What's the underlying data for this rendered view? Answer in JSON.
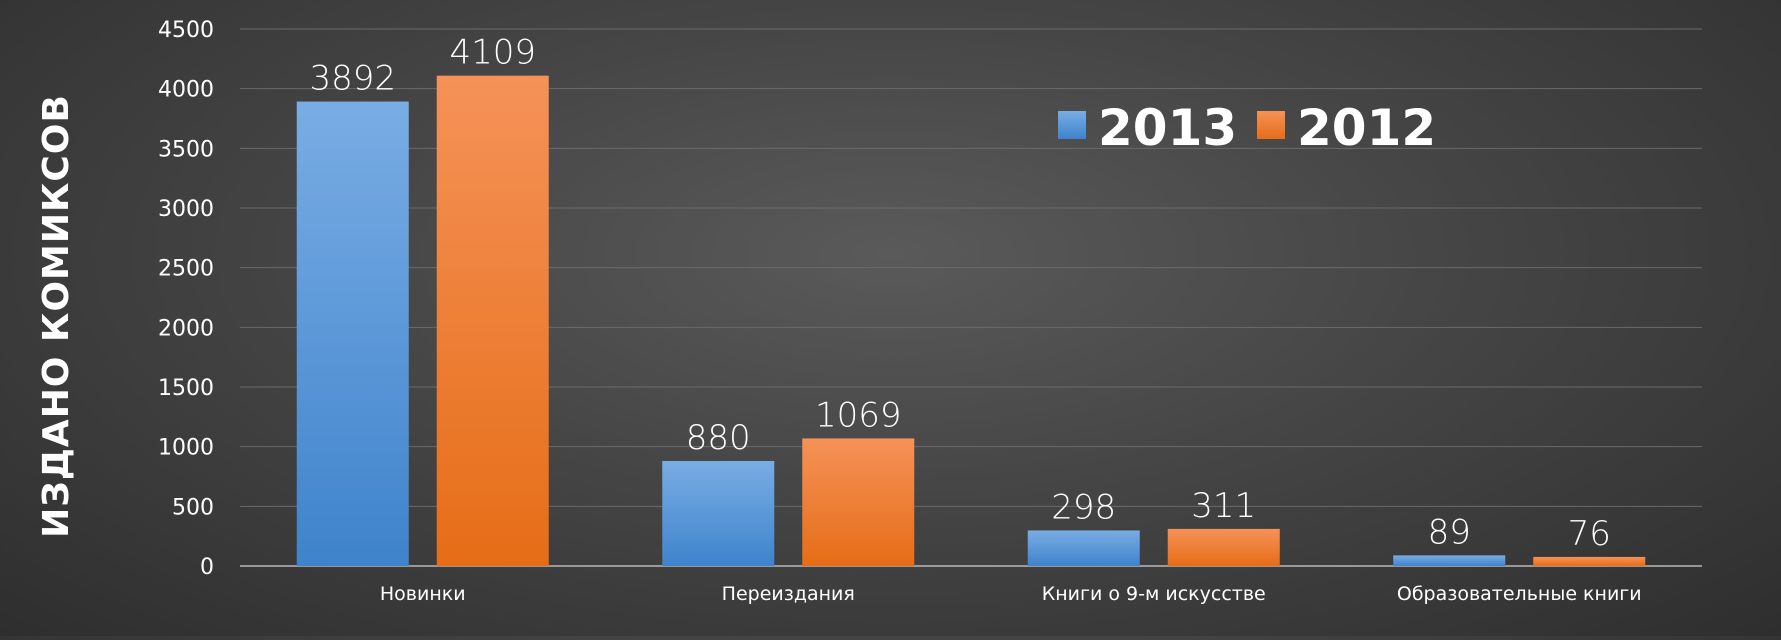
{
  "chart_data": {
    "type": "bar",
    "title": "",
    "xlabel": "",
    "ylabel": "ИЗДАНО КОМИКСОВ",
    "categories": [
      "Новинки",
      "Переиздания",
      "Книги о 9-м искусстве",
      "Образовательные книги"
    ],
    "series": [
      {
        "name": "2013",
        "values": [
          3892,
          880,
          298,
          89
        ],
        "color": "#4a8fd6"
      },
      {
        "name": "2012",
        "values": [
          4109,
          1069,
          311,
          76
        ],
        "color": "#ee7a2a"
      }
    ],
    "ylim": [
      0,
      4500
    ],
    "yticks": [
      0,
      500,
      1000,
      1500,
      2000,
      2500,
      3000,
      3500,
      4000,
      4500
    ],
    "grid": true,
    "legend_position": "top-right"
  }
}
